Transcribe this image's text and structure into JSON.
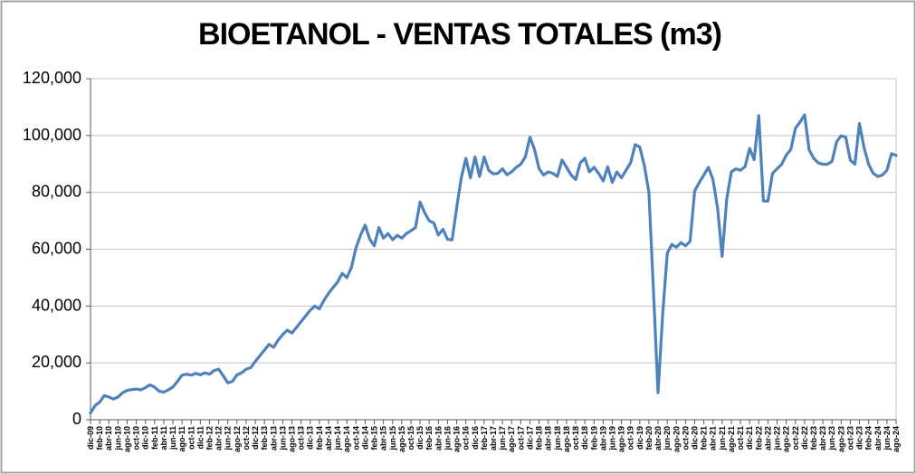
{
  "window": {
    "background": "#FFFFFF",
    "border_color": "#A6A6A6"
  },
  "chart_data": {
    "type": "line",
    "title": "BIOETANOL - VENTAS TOTALES (m3)",
    "xlabel": "",
    "ylabel": "",
    "ylim": [
      0,
      120000
    ],
    "grid": true,
    "legend": "none",
    "series_name": "Ventas totales (m3)",
    "colors": {
      "line": "#4F81BD",
      "gridline": "#C3C3C3",
      "axis": "#595959",
      "text": "#000000",
      "plot_border": "#C3C3C3"
    },
    "y_tick_values": [
      0,
      20000,
      40000,
      60000,
      80000,
      100000,
      120000
    ],
    "y_tick_labels": [
      "0",
      "20,000",
      "40,000",
      "60,000",
      "80,000",
      "100,000",
      "120,000"
    ],
    "x_label_every_n_points": 2,
    "x_labels": [
      "dic-09",
      "feb-10",
      "abr-10",
      "jun-10",
      "ago-10",
      "oct-10",
      "dic-10",
      "feb-11",
      "abr-11",
      "jun-11",
      "ago-11",
      "oct-11",
      "dic-11",
      "feb-12",
      "abr-12",
      "jun-12",
      "ago-12",
      "oct-12",
      "dic-12",
      "feb-13",
      "abr-13",
      "jun-13",
      "ago-13",
      "oct-13",
      "dic-13",
      "feb-14",
      "abr-14",
      "jun-14",
      "ago-14",
      "oct-14",
      "dic-14",
      "feb-15",
      "abr-15",
      "jun-15",
      "ago-15",
      "oct-15",
      "dic-15",
      "feb-16",
      "abr-16",
      "jun-16",
      "ago-16",
      "oct-16",
      "dic-16",
      "feb-17",
      "abr-17",
      "jun-17",
      "ago-17",
      "oct-17",
      "dic-17",
      "feb-18",
      "abr-18",
      "jun-18",
      "ago-18",
      "oct-18",
      "dic-18",
      "feb-19",
      "abr-19",
      "jun-19",
      "ago-19",
      "oct-19",
      "dic-19",
      "feb-20",
      "abr-20",
      "jun-20",
      "ago-20",
      "oct-20",
      "dic-20",
      "feb-21",
      "abr-21",
      "jun-21",
      "ago-21",
      "oct-21",
      "dic-21",
      "feb-22",
      "abr-22",
      "jun-22",
      "ago-22",
      "oct-22",
      "dic-22",
      "feb-23",
      "abr-23",
      "jun-23",
      "ago-23",
      "oct-23",
      "dic-23",
      "feb-24",
      "abr-24",
      "jun-24",
      "ago-24"
    ],
    "values": [
      2400,
      5000,
      6200,
      8500,
      8000,
      7300,
      8000,
      9500,
      10300,
      10600,
      10800,
      10500,
      11300,
      12300,
      11500,
      10000,
      9700,
      10500,
      11500,
      13500,
      15700,
      16000,
      15700,
      16300,
      15800,
      16500,
      16000,
      17300,
      17800,
      15500,
      13000,
      13500,
      15800,
      16500,
      17800,
      18300,
      20500,
      22500,
      24500,
      26500,
      25500,
      28000,
      30000,
      31500,
      30500,
      32500,
      34500,
      36500,
      38500,
      40000,
      39000,
      42000,
      44500,
      46500,
      48500,
      51500,
      50000,
      53500,
      60500,
      65000,
      68500,
      63500,
      61200,
      67600,
      63900,
      65500,
      63300,
      64900,
      63900,
      65500,
      66500,
      67600,
      76600,
      72900,
      70000,
      69200,
      65000,
      67000,
      63500,
      63300,
      74500,
      85100,
      92000,
      85100,
      92500,
      85600,
      92500,
      87800,
      86500,
      86700,
      88300,
      86200,
      87200,
      88800,
      89900,
      92500,
      99400,
      95100,
      88300,
      86100,
      87200,
      86700,
      85600,
      91400,
      88800,
      86100,
      84500,
      90400,
      92000,
      87200,
      88800,
      86700,
      84000,
      89000,
      83500,
      87200,
      85100,
      87800,
      90400,
      96800,
      96000,
      89400,
      80000,
      45000,
      9500,
      37000,
      58600,
      61700,
      60700,
      62300,
      61200,
      62800,
      80500,
      83500,
      86100,
      88800,
      84500,
      74500,
      57500,
      77700,
      87200,
      88300,
      87800,
      89000,
      95500,
      91500,
      107000,
      77000,
      76900,
      86700,
      88300,
      89900,
      93100,
      95100,
      102600,
      104700,
      107300,
      95000,
      92000,
      90400,
      89900,
      89900,
      90900,
      97800,
      99900,
      99400,
      91400,
      89900,
      104200,
      95700,
      89900,
      86700,
      85600,
      86100,
      87800,
      93600,
      93000
    ]
  }
}
